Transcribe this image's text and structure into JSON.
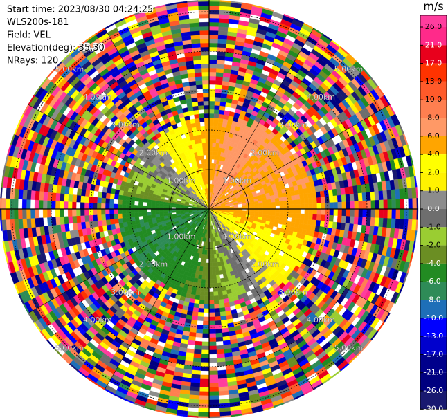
{
  "chart_data": {
    "type": "ppi",
    "header": [
      "Start time: 2023/08/30 04:24:25",
      "WLS200s-181",
      "Field: VEL",
      "Elevation(deg): 35.30",
      "NRays: 120"
    ],
    "colorbar_title": "m/s",
    "colorbar_ticks": [
      {
        "value": 26,
        "label": "26.0"
      },
      {
        "value": 21,
        "label": "21.0"
      },
      {
        "value": 17,
        "label": "17.0"
      },
      {
        "value": 13,
        "label": "13.0"
      },
      {
        "value": 10,
        "label": "10.0"
      },
      {
        "value": 8,
        "label": "8.0"
      },
      {
        "value": 6,
        "label": "6.0"
      },
      {
        "value": 4,
        "label": "4.0"
      },
      {
        "value": 2,
        "label": "2.0"
      },
      {
        "value": 1,
        "label": "1.0"
      },
      {
        "value": 0,
        "label": "0.0"
      },
      {
        "value": -1,
        "label": "-1.0"
      },
      {
        "value": -2,
        "label": "-2.0"
      },
      {
        "value": -4,
        "label": "-4.0"
      },
      {
        "value": -6,
        "label": "-6.0"
      },
      {
        "value": -8,
        "label": "-8.0"
      },
      {
        "value": -10,
        "label": "-10.0"
      },
      {
        "value": -13,
        "label": "-13.0"
      },
      {
        "value": -17,
        "label": "-17.0"
      },
      {
        "value": -21,
        "label": "-21.0"
      },
      {
        "value": -26,
        "label": "-26.0"
      },
      {
        "value": -30,
        "label": "-30.0"
      }
    ],
    "colors": [
      "#ff3d9e",
      "#ff2a8a",
      "#e8001c",
      "#ff3300",
      "#ff5a2a",
      "#ff7f50",
      "#ff9966",
      "#ffa500",
      "#ffff00",
      "#fff200",
      "#8c8c8c",
      "#6e6e6e",
      "#9acd32",
      "#6b8e23",
      "#228b22",
      "#2e8b57",
      "#1e6fb8",
      "#0000ff",
      "#0000cd",
      "#00008b",
      "#000080",
      "#191970"
    ],
    "range_rings": [
      {
        "value": 1,
        "label": "1.00km"
      },
      {
        "value": 2,
        "label": "2.00km"
      },
      {
        "value": 3,
        "label": "3.00km"
      },
      {
        "value": 4,
        "label": "4.00km"
      },
      {
        "value": 5,
        "label": "5.00km"
      }
    ]
  }
}
